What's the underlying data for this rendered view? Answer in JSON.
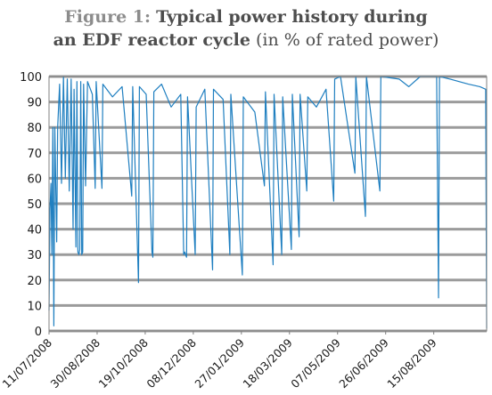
{
  "chart_data": {
    "type": "line",
    "title_prefix": "Figure 1:",
    "title_main_1": "Typical power history during",
    "title_main_2": "an EDF reactor cycle",
    "title_unit": "(in % of rated power)",
    "xlabel": "",
    "ylabel": "",
    "ylim": [
      0,
      100
    ],
    "yticks": [
      0,
      10,
      20,
      30,
      40,
      50,
      60,
      70,
      80,
      90,
      100
    ],
    "grid": true,
    "x_start": "2008-07-11",
    "x_end": "2009-10-09",
    "xtick_labels": [
      "11/07/2008",
      "30/08/2008",
      "19/10/2008",
      "08/12/2008",
      "27/01/2009",
      "18/03/2009",
      "07/05/2009",
      "26/06/2009",
      "15/08/2009"
    ],
    "colors": {
      "series": "#1f7fc0",
      "grid": "#9b9b9b",
      "frame": "#808080"
    },
    "series": [
      {
        "points": [
          [
            "2008-07-11",
            8
          ],
          [
            "2008-07-12",
            48
          ],
          [
            "2008-07-13",
            58
          ],
          [
            "2008-07-14",
            30
          ],
          [
            "2008-07-15",
            80
          ],
          [
            "2008-07-16",
            2
          ],
          [
            "2008-07-17",
            80
          ],
          [
            "2008-07-19",
            35
          ],
          [
            "2008-07-20",
            80
          ],
          [
            "2008-07-22",
            97
          ],
          [
            "2008-07-24",
            58
          ],
          [
            "2008-07-26",
            100
          ],
          [
            "2008-07-28",
            60
          ],
          [
            "2008-07-30",
            99
          ],
          [
            "2008-08-01",
            55
          ],
          [
            "2008-08-03",
            99
          ],
          [
            "2008-08-05",
            40
          ],
          [
            "2008-08-06",
            95
          ],
          [
            "2008-08-08",
            33
          ],
          [
            "2008-08-09",
            98
          ],
          [
            "2008-08-10",
            31
          ],
          [
            "2008-08-11",
            30
          ],
          [
            "2008-08-12",
            32
          ],
          [
            "2008-08-13",
            98
          ],
          [
            "2008-08-14",
            30
          ],
          [
            "2008-08-15",
            31
          ],
          [
            "2008-08-16",
            97
          ],
          [
            "2008-08-18",
            57
          ],
          [
            "2008-08-20",
            98
          ],
          [
            "2008-08-25",
            93
          ],
          [
            "2008-08-28",
            56
          ],
          [
            "2008-08-29",
            98
          ],
          [
            "2008-09-04",
            56
          ],
          [
            "2008-09-05",
            97
          ],
          [
            "2008-09-15",
            92
          ],
          [
            "2008-09-25",
            96
          ],
          [
            "2008-10-05",
            53
          ],
          [
            "2008-10-06",
            96
          ],
          [
            "2008-10-12",
            19
          ],
          [
            "2008-10-13",
            96
          ],
          [
            "2008-10-20",
            93
          ],
          [
            "2008-10-26",
            31
          ],
          [
            "2008-10-27",
            29
          ],
          [
            "2008-10-28",
            94
          ],
          [
            "2008-11-05",
            97
          ],
          [
            "2008-11-15",
            88
          ],
          [
            "2008-11-25",
            93
          ],
          [
            "2008-11-28",
            30
          ],
          [
            "2008-11-29",
            31
          ],
          [
            "2008-11-30",
            30
          ],
          [
            "2008-12-01",
            29
          ],
          [
            "2008-12-02",
            92
          ],
          [
            "2008-12-10",
            30
          ],
          [
            "2008-12-11",
            88
          ],
          [
            "2008-12-20",
            95
          ],
          [
            "2008-12-28",
            24
          ],
          [
            "2008-12-29",
            95
          ],
          [
            "2009-01-08",
            91
          ],
          [
            "2009-01-15",
            30
          ],
          [
            "2009-01-16",
            93
          ],
          [
            "2009-01-28",
            22
          ],
          [
            "2009-01-29",
            92
          ],
          [
            "2009-02-10",
            86
          ],
          [
            "2009-02-20",
            57
          ],
          [
            "2009-02-21",
            94
          ],
          [
            "2009-03-01",
            26
          ],
          [
            "2009-03-02",
            93
          ],
          [
            "2009-03-10",
            30
          ],
          [
            "2009-03-11",
            92
          ],
          [
            "2009-03-20",
            32
          ],
          [
            "2009-03-21",
            93
          ],
          [
            "2009-03-28",
            37
          ],
          [
            "2009-03-29",
            93
          ],
          [
            "2009-04-05",
            55
          ],
          [
            "2009-04-06",
            92
          ],
          [
            "2009-04-15",
            88
          ],
          [
            "2009-04-25",
            95
          ],
          [
            "2009-05-03",
            51
          ],
          [
            "2009-05-04",
            99
          ],
          [
            "2009-05-10",
            100
          ],
          [
            "2009-05-25",
            62
          ],
          [
            "2009-05-26",
            100
          ],
          [
            "2009-06-05",
            45
          ],
          [
            "2009-06-06",
            100
          ],
          [
            "2009-06-20",
            55
          ],
          [
            "2009-06-21",
            100
          ],
          [
            "2009-07-10",
            99
          ],
          [
            "2009-07-20",
            96
          ],
          [
            "2009-08-01",
            100
          ],
          [
            "2009-08-18",
            100
          ],
          [
            "2009-08-20",
            13
          ],
          [
            "2009-08-21",
            100
          ],
          [
            "2009-09-01",
            99
          ],
          [
            "2009-09-20",
            97
          ],
          [
            "2009-10-02",
            96
          ],
          [
            "2009-10-08",
            95
          ],
          [
            "2009-10-09",
            1
          ]
        ]
      }
    ]
  }
}
